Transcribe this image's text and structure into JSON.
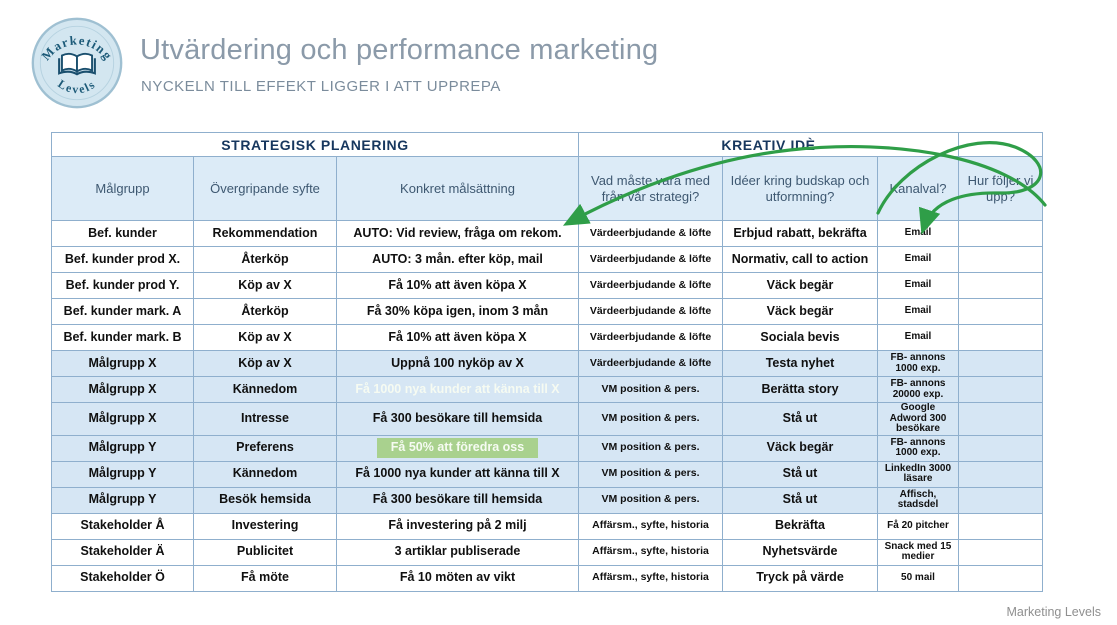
{
  "logo": {
    "top_text": "Marketing",
    "bottom_text": "Levels"
  },
  "header": {
    "title": "Utvärdering och performance marketing",
    "subtitle": "NYCKELN TILL EFFEKT LIGGER I ATT UPPREPA"
  },
  "footer": {
    "brand": "Marketing Levels"
  },
  "colors": {
    "arrow_green": "#2f9e48",
    "highlight_green": "#a9d18e",
    "header_blue": "#dcebf7",
    "row_blue": "#d6e6f4",
    "grid_line": "#8fafcd"
  },
  "table": {
    "groups": [
      {
        "label": "STRATEGISK PLANERING",
        "span": 3
      },
      {
        "label": "KREATIV IDÈ",
        "span": 3
      },
      {
        "label": "",
        "span": 1
      }
    ],
    "columns": [
      "Målgrupp",
      "Övergripande syfte",
      "Konkret målsättning",
      "Vad måste vara med från vår strategi?",
      "Idéer kring budskap och utformning?",
      "Kanalval?",
      "Hur följer vi upp?"
    ],
    "rows": [
      {
        "tint": "white",
        "cells": [
          "Bef. kunder",
          "Rekommendation",
          "AUTO: Vid review, fråga om rekom.",
          "Värdeerbjudande & löfte",
          "Erbjud rabatt, bekräfta",
          "Email",
          ""
        ]
      },
      {
        "tint": "white",
        "cells": [
          "Bef. kunder prod X.",
          "Återköp",
          "AUTO: 3 mån. efter köp, mail",
          "Värdeerbjudande & löfte",
          "Normativ, call to action",
          "Email",
          ""
        ]
      },
      {
        "tint": "white",
        "cells": [
          "Bef. kunder prod Y.",
          "Köp av X",
          "Få 10% att även köpa X",
          "Värdeerbjudande & löfte",
          "Väck begär",
          "Email",
          ""
        ]
      },
      {
        "tint": "white",
        "cells": [
          "Bef. kunder mark. A",
          "Återköp",
          "Få 30% köpa igen, inom 3 mån",
          "Värdeerbjudande & löfte",
          "Väck begär",
          "Email",
          ""
        ]
      },
      {
        "tint": "white",
        "cells": [
          "Bef. kunder mark. B",
          "Köp av X",
          "Få 10% att även köpa X",
          "Värdeerbjudande & löfte",
          "Sociala bevis",
          "Email",
          ""
        ]
      },
      {
        "tint": "blue",
        "cells": [
          "Målgrupp X",
          "Köp av X",
          "Uppnå 100 nyköp av X",
          "Värdeerbjudande & löfte",
          "Testa nyhet",
          "FB- annons 1000 exp.",
          ""
        ]
      },
      {
        "tint": "blue",
        "highlight": {
          "col": 2,
          "style": "full"
        },
        "cells": [
          "Målgrupp X",
          "Kännedom",
          "Få 1000 nya kunder att känna till X",
          "VM position & pers.",
          "Berätta story",
          "FB- annons 20000 exp.",
          ""
        ]
      },
      {
        "tint": "blue",
        "cells": [
          "Målgrupp X",
          "Intresse",
          "Få 300 besökare till hemsida",
          "VM position & pers.",
          "Stå ut",
          "Google Adword 300 besökare",
          ""
        ]
      },
      {
        "tint": "blue",
        "highlight": {
          "col": 2,
          "style": "box"
        },
        "cells": [
          "Målgrupp Y",
          "Preferens",
          "Få 50% att föredra oss",
          "VM position & pers.",
          "Väck begär",
          "FB- annons 1000 exp.",
          ""
        ]
      },
      {
        "tint": "blue",
        "cells": [
          "Målgrupp Y",
          "Kännedom",
          "Få 1000 nya kunder att känna till X",
          "VM position & pers.",
          "Stå ut",
          "LinkedIn 3000 läsare",
          ""
        ]
      },
      {
        "tint": "blue",
        "cells": [
          "Målgrupp Y",
          "Besök hemsida",
          "Få 300 besökare till hemsida",
          "VM position & pers.",
          "Stå ut",
          "Affisch, stadsdel",
          ""
        ]
      },
      {
        "tint": "white",
        "cells": [
          "Stakeholder Å",
          "Investering",
          "Få investering på 2 milj",
          "Affärsm., syfte, historia",
          "Bekräfta",
          "Få 20 pitcher",
          ""
        ]
      },
      {
        "tint": "white",
        "cells": [
          "Stakeholder Ä",
          "Publicitet",
          "3 artiklar publiserade",
          "Affärsm., syfte, historia",
          "Nyhetsvärde",
          "Snack med 15 medier",
          ""
        ]
      },
      {
        "tint": "white",
        "cells": [
          "Stakeholder Ö",
          "Få möte",
          "Få 10 möten av vikt",
          "Affärsm., syfte, historia",
          "Tryck på värde",
          "50 mail",
          ""
        ]
      }
    ]
  }
}
